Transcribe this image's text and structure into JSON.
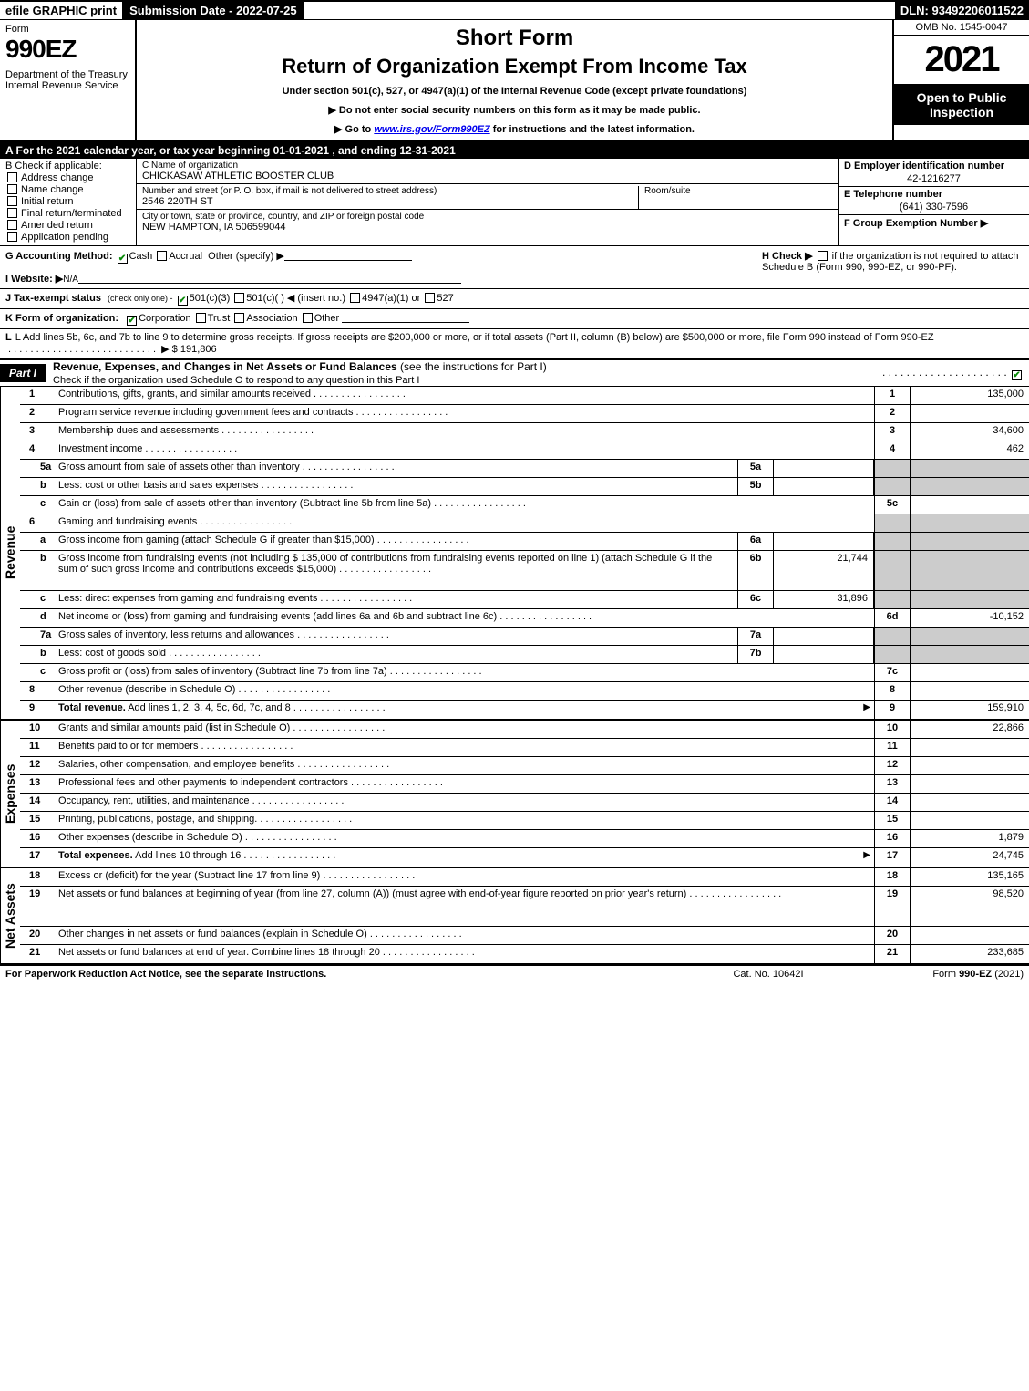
{
  "topbar": {
    "efile": "efile GRAPHIC print",
    "subdate": "Submission Date - 2022-07-25",
    "dln": "DLN: 93492206011522"
  },
  "header": {
    "form_word": "Form",
    "form_number": "990EZ",
    "dept": "Department of the Treasury",
    "irs": "Internal Revenue Service",
    "short_form": "Short Form",
    "title": "Return of Organization Exempt From Income Tax",
    "subtitle": "Under section 501(c), 527, or 4947(a)(1) of the Internal Revenue Code (except private foundations)",
    "instr1": "▶ Do not enter social security numbers on this form as it may be made public.",
    "instr2_pre": "▶ Go to ",
    "instr2_link": "www.irs.gov/Form990EZ",
    "instr2_post": " for instructions and the latest information.",
    "omb": "OMB No. 1545-0047",
    "year": "2021",
    "badge": "Open to Public Inspection"
  },
  "sectionA": "A  For the 2021 calendar year, or tax year beginning 01-01-2021 , and ending 12-31-2021",
  "colB": {
    "title": "B  Check if applicable:",
    "items": [
      {
        "label": "Address change",
        "checked": false
      },
      {
        "label": "Name change",
        "checked": false
      },
      {
        "label": "Initial return",
        "checked": false
      },
      {
        "label": "Final return/terminated",
        "checked": false
      },
      {
        "label": "Amended return",
        "checked": false
      },
      {
        "label": "Application pending",
        "checked": false
      }
    ]
  },
  "colC": {
    "name_lbl": "C Name of organization",
    "name": "CHICKASAW ATHLETIC BOOSTER CLUB",
    "street_lbl": "Number and street (or P. O. box, if mail is not delivered to street address)",
    "room_lbl": "Room/suite",
    "street": "2546 220TH ST",
    "city_lbl": "City or town, state or province, country, and ZIP or foreign postal code",
    "city": "NEW HAMPTON, IA  506599044"
  },
  "colD": {
    "ein_lbl": "D Employer identification number",
    "ein": "42-1216277",
    "tel_lbl": "E Telephone number",
    "tel": "(641) 330-7596",
    "grp_lbl": "F Group Exemption Number   ▶"
  },
  "rowG": {
    "g_lbl": "G Accounting Method:",
    "cash": "Cash",
    "accrual": "Accrual",
    "other": "Other (specify) ▶",
    "cash_checked": true,
    "accrual_checked": false,
    "h_text": "H  Check ▶  ",
    "h_text2": " if the organization is not required to attach Schedule B (Form 990, 990-EZ, or 990-PF).",
    "h_checked": false
  },
  "rowI": {
    "lbl": "I Website: ▶",
    "val": "N/A"
  },
  "rowJ": {
    "lbl": "J Tax-exempt status",
    "sub": "(check only one) -",
    "opt1": "501(c)(3)",
    "opt2": "501(c)(   ) ◀ (insert no.)",
    "opt3": "4947(a)(1) or",
    "opt4": "527",
    "opt1_checked": true
  },
  "rowK": {
    "lbl": "K Form of organization:",
    "opts": [
      "Corporation",
      "Trust",
      "Association",
      "Other"
    ],
    "checked_idx": 0
  },
  "rowL": {
    "text": "L Add lines 5b, 6c, and 7b to line 9 to determine gross receipts. If gross receipts are $200,000 or more, or if total assets (Part II, column (B) below) are $500,000 or more, file Form 990 instead of Form 990-EZ",
    "arrow": "▶ $",
    "value": "191,806"
  },
  "part1": {
    "tab": "Part I",
    "title": "Revenue, Expenses, and Changes in Net Assets or Fund Balances",
    "title_thin": " (see the instructions for Part I)",
    "sub": "Check if the organization used Schedule O to respond to any question in this Part I",
    "sub_checked": true
  },
  "side_labels": {
    "revenue": "Revenue",
    "expenses": "Expenses",
    "netassets": "Net Assets"
  },
  "revenue_lines": [
    {
      "num": "1",
      "desc": "Contributions, gifts, grants, and similar amounts received",
      "rnum": "1",
      "rval": "135,000"
    },
    {
      "num": "2",
      "desc": "Program service revenue including government fees and contracts",
      "rnum": "2",
      "rval": ""
    },
    {
      "num": "3",
      "desc": "Membership dues and assessments",
      "rnum": "3",
      "rval": "34,600"
    },
    {
      "num": "4",
      "desc": "Investment income",
      "rnum": "4",
      "rval": "462"
    },
    {
      "num": "5a",
      "sub": true,
      "desc": "Gross amount from sale of assets other than inventory",
      "mid": "5a",
      "midval": "",
      "shade": true
    },
    {
      "num": "b",
      "sub": true,
      "desc": "Less: cost or other basis and sales expenses",
      "mid": "5b",
      "midval": "",
      "shade": true
    },
    {
      "num": "c",
      "sub": true,
      "desc": "Gain or (loss) from sale of assets other than inventory (Subtract line 5b from line 5a)",
      "rnum": "5c",
      "rval": ""
    },
    {
      "num": "6",
      "desc": "Gaming and fundraising events",
      "shade_full": true
    },
    {
      "num": "a",
      "sub": true,
      "desc": "Gross income from gaming (attach Schedule G if greater than $15,000)",
      "mid": "6a",
      "midval": "",
      "shade": true
    },
    {
      "num": "b",
      "sub": true,
      "desc": "Gross income from fundraising events (not including $  135,000       of contributions from fundraising events reported on line 1) (attach Schedule G if the sum of such gross income and contributions exceeds $15,000)",
      "mid": "6b",
      "midval": "21,744",
      "shade": true,
      "tall": true
    },
    {
      "num": "c",
      "sub": true,
      "desc": "Less: direct expenses from gaming and fundraising events",
      "mid": "6c",
      "midval": "31,896",
      "shade": true
    },
    {
      "num": "d",
      "sub": true,
      "desc": "Net income or (loss) from gaming and fundraising events (add lines 6a and 6b and subtract line 6c)",
      "rnum": "6d",
      "rval": "-10,152"
    },
    {
      "num": "7a",
      "sub": true,
      "desc": "Gross sales of inventory, less returns and allowances",
      "mid": "7a",
      "midval": "",
      "shade": true
    },
    {
      "num": "b",
      "sub": true,
      "desc": "Less: cost of goods sold",
      "mid": "7b",
      "midval": "",
      "shade": true
    },
    {
      "num": "c",
      "sub": true,
      "desc": "Gross profit or (loss) from sales of inventory (Subtract line 7b from line 7a)",
      "rnum": "7c",
      "rval": ""
    },
    {
      "num": "8",
      "desc": "Other revenue (describe in Schedule O)",
      "rnum": "8",
      "rval": ""
    },
    {
      "num": "9",
      "desc": "Total revenue. Add lines 1, 2, 3, 4, 5c, 6d, 7c, and 8",
      "rnum": "9",
      "rval": "159,910",
      "bold": true,
      "arrow": true
    }
  ],
  "expense_lines": [
    {
      "num": "10",
      "desc": "Grants and similar amounts paid (list in Schedule O)",
      "rnum": "10",
      "rval": "22,866"
    },
    {
      "num": "11",
      "desc": "Benefits paid to or for members",
      "rnum": "11",
      "rval": ""
    },
    {
      "num": "12",
      "desc": "Salaries, other compensation, and employee benefits",
      "rnum": "12",
      "rval": ""
    },
    {
      "num": "13",
      "desc": "Professional fees and other payments to independent contractors",
      "rnum": "13",
      "rval": ""
    },
    {
      "num": "14",
      "desc": "Occupancy, rent, utilities, and maintenance",
      "rnum": "14",
      "rval": ""
    },
    {
      "num": "15",
      "desc": "Printing, publications, postage, and shipping.",
      "rnum": "15",
      "rval": ""
    },
    {
      "num": "16",
      "desc": "Other expenses (describe in Schedule O)",
      "rnum": "16",
      "rval": "1,879"
    },
    {
      "num": "17",
      "desc": "Total expenses. Add lines 10 through 16",
      "rnum": "17",
      "rval": "24,745",
      "bold": true,
      "arrow": true
    }
  ],
  "netasset_lines": [
    {
      "num": "18",
      "desc": "Excess or (deficit) for the year (Subtract line 17 from line 9)",
      "rnum": "18",
      "rval": "135,165"
    },
    {
      "num": "19",
      "desc": "Net assets or fund balances at beginning of year (from line 27, column (A)) (must agree with end-of-year figure reported on prior year's return)",
      "rnum": "19",
      "rval": "98,520",
      "tall": true
    },
    {
      "num": "20",
      "desc": "Other changes in net assets or fund balances (explain in Schedule O)",
      "rnum": "20",
      "rval": ""
    },
    {
      "num": "21",
      "desc": "Net assets or fund balances at end of year. Combine lines 18 through 20",
      "rnum": "21",
      "rval": "233,685"
    }
  ],
  "footer": {
    "f1": "For Paperwork Reduction Act Notice, see the separate instructions.",
    "f2": "Cat. No. 10642I",
    "f3": "Form 990-EZ (2021)"
  }
}
